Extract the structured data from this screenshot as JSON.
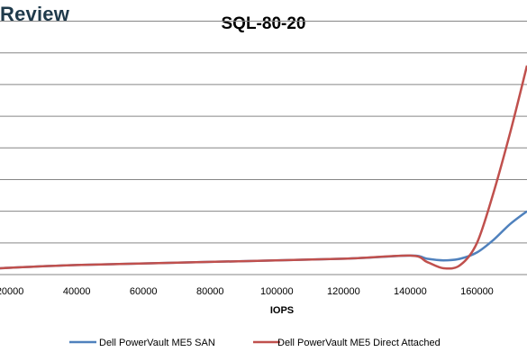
{
  "brand": "Review",
  "chart_data": {
    "type": "line",
    "title": "SQL-80-20",
    "xlabel": "IOPS",
    "ylabel": "",
    "xlim": [
      17000,
      175000
    ],
    "ylim": [
      0,
      8.1
    ],
    "x_ticks": [
      20000,
      40000,
      60000,
      80000,
      100000,
      120000,
      140000,
      160000
    ],
    "x_tick_labels": [
      "20000",
      "40000",
      "60000",
      "80000",
      "100000",
      "120000",
      "140000",
      "160000"
    ],
    "y_gridlines": [
      1,
      2,
      3,
      4,
      5,
      6,
      7,
      8
    ],
    "grid": true,
    "legend_position": "bottom",
    "series": [
      {
        "name": "Dell PowerVault ME5 SAN",
        "color": "#4f81bd",
        "x": [
          17000,
          40000,
          80000,
          120000,
          140000,
          145000,
          150000,
          155000,
          160000,
          165000,
          170000,
          175000
        ],
        "y": [
          0.2,
          0.3,
          0.4,
          0.5,
          0.6,
          0.5,
          0.45,
          0.5,
          0.7,
          1.1,
          1.6,
          2.0
        ]
      },
      {
        "name": "Dell PowerVault ME5 Direct Attached",
        "color": "#c0504d",
        "x": [
          17000,
          40000,
          80000,
          120000,
          140000,
          145000,
          150000,
          155000,
          160000,
          165000,
          170000,
          175000
        ],
        "y": [
          0.2,
          0.3,
          0.4,
          0.5,
          0.6,
          0.4,
          0.2,
          0.3,
          1.0,
          2.6,
          4.5,
          6.6
        ]
      }
    ]
  }
}
